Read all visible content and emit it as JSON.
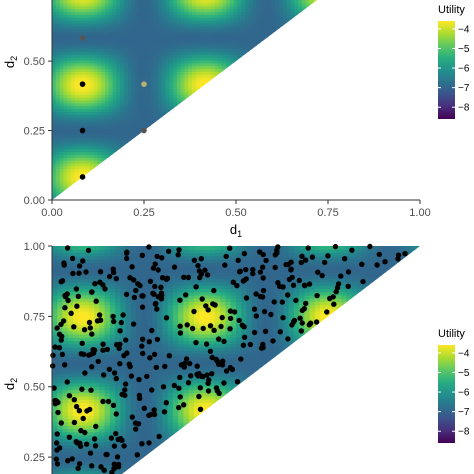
{
  "colors": {
    "viridis": [
      "#440154",
      "#472d7b",
      "#3b528b",
      "#2c728e",
      "#21918c",
      "#28ae80",
      "#5ec962",
      "#addc30",
      "#fde725"
    ],
    "point": "#000000",
    "axis": "#333333",
    "tick_text": "#4d4d4d"
  },
  "chart_data": [
    {
      "type": "heatmap",
      "panel": "top",
      "region": "triangle: d1 >= 0, d2 >= d1, d2 <= 1 (upper-left half of unit square)",
      "xlabel": "d1",
      "ylabel": "d2",
      "xlim": [
        0,
        1
      ],
      "ylim": [
        0,
        0.72
      ],
      "xticks": [
        "0.00",
        "0.25",
        "0.50",
        "0.75",
        "1.00"
      ],
      "yticks": [
        "0.00",
        "0.25",
        "0.50"
      ],
      "yticks_values": [
        0,
        0.25,
        0.5
      ],
      "grid": false,
      "utility_surface": "periodic bumps, high (yellow) at grid nodes spaced ~0.167, low (blue) between",
      "points": [
        {
          "d1": 0.083,
          "d2": 0.583,
          "shade": "gray"
        },
        {
          "d1": 0.083,
          "d2": 0.417,
          "shade": "black"
        },
        {
          "d1": 0.25,
          "d2": 0.417,
          "shade": "light"
        },
        {
          "d1": 0.083,
          "d2": 0.25,
          "shade": "black"
        },
        {
          "d1": 0.25,
          "d2": 0.25,
          "shade": "gray"
        },
        {
          "d1": 0.083,
          "d2": 0.083,
          "shade": "black"
        }
      ],
      "legend": {
        "title": "Utility",
        "labels": [
          "−4",
          "−5",
          "−6",
          "−7",
          "−8"
        ],
        "values": [
          -4,
          -5,
          -6,
          -7,
          -8
        ],
        "range": [
          -8.6,
          -3.6
        ],
        "placement": "right"
      }
    },
    {
      "type": "heatmap",
      "panel": "bottom",
      "region": "triangle: d1 >= 0, d2 >= d1, d2 <= 1",
      "xlabel": "",
      "ylabel": "d2",
      "xlim": [
        0,
        1
      ],
      "ylim": [
        0.19,
        1
      ],
      "yticks": [
        "0.25",
        "0.50",
        "0.75",
        "1.00"
      ],
      "yticks_values": [
        0.25,
        0.5,
        0.75,
        1.0
      ],
      "grid": false,
      "points_description": "roughly 400 black points spread across the triangular design region",
      "n_points": 420,
      "legend": {
        "title": "Utility",
        "labels": [
          "−4",
          "−5",
          "−6",
          "−7",
          "−8"
        ],
        "values": [
          -4,
          -5,
          -6,
          -7,
          -8
        ],
        "range": [
          -8.6,
          -3.6
        ],
        "placement": "right"
      }
    }
  ]
}
